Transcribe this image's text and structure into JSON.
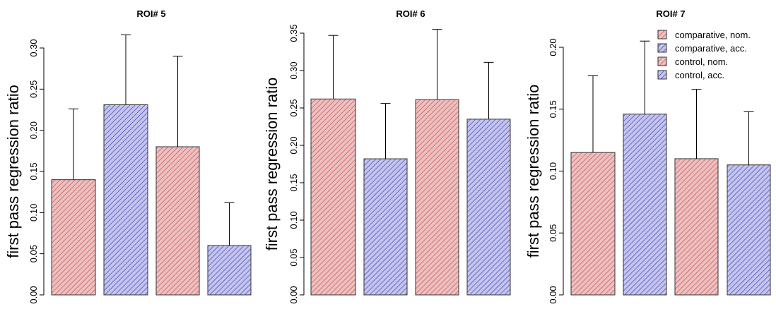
{
  "colors": {
    "nom": "#d25a5a",
    "acc": "#4d4dbf",
    "nom_fill": "#e8b3b3",
    "acc_fill": "#b3b3e8"
  },
  "chart_data": [
    {
      "type": "bar",
      "title": "ROI# 5",
      "ylabel": "first pass regression ratio",
      "ylim": [
        0,
        0.3
      ],
      "yticks": [
        "0.00",
        "0.05",
        "0.10",
        "0.15",
        "0.20",
        "0.25",
        "0.30"
      ],
      "categories": [
        "comparative, nom.",
        "comparative, acc.",
        "control, nom.",
        "control, acc."
      ],
      "values": [
        0.14,
        0.231,
        0.18,
        0.06
      ],
      "error_upper": [
        0.226,
        0.316,
        0.29,
        0.112
      ],
      "bar_colors": [
        "nom",
        "acc",
        "nom",
        "acc"
      ]
    },
    {
      "type": "bar",
      "title": "ROI# 6",
      "ylabel": "first pass regression ratio",
      "ylim": [
        0,
        0.35
      ],
      "yticks": [
        "0.00",
        "0.05",
        "0.10",
        "0.15",
        "0.20",
        "0.25",
        "0.30",
        "0.35"
      ],
      "categories": [
        "comparative, nom.",
        "comparative, acc.",
        "control, nom.",
        "control, acc."
      ],
      "values": [
        0.262,
        0.182,
        0.261,
        0.235
      ],
      "error_upper": [
        0.347,
        0.256,
        0.355,
        0.311
      ],
      "bar_colors": [
        "nom",
        "acc",
        "nom",
        "acc"
      ]
    },
    {
      "type": "bar",
      "title": "ROI# 7",
      "ylabel": "first pass regression ratio",
      "ylim": [
        0,
        0.2
      ],
      "yticks": [
        "0.00",
        "0.05",
        "0.10",
        "0.15",
        "0.20"
      ],
      "categories": [
        "comparative, nom.",
        "comparative, acc.",
        "control, nom.",
        "control, acc."
      ],
      "values": [
        0.115,
        0.146,
        0.11,
        0.105
      ],
      "error_upper": [
        0.177,
        0.205,
        0.166,
        0.148
      ],
      "bar_colors": [
        "nom",
        "acc",
        "nom",
        "acc"
      ],
      "legend": {
        "position": "top-right",
        "entries": [
          {
            "label": "comparative, nom.",
            "color": "nom"
          },
          {
            "label": "comparative, acc.",
            "color": "acc"
          },
          {
            "label": "control, nom.",
            "color": "nom"
          },
          {
            "label": "control, acc.",
            "color": "acc"
          }
        ]
      }
    }
  ]
}
